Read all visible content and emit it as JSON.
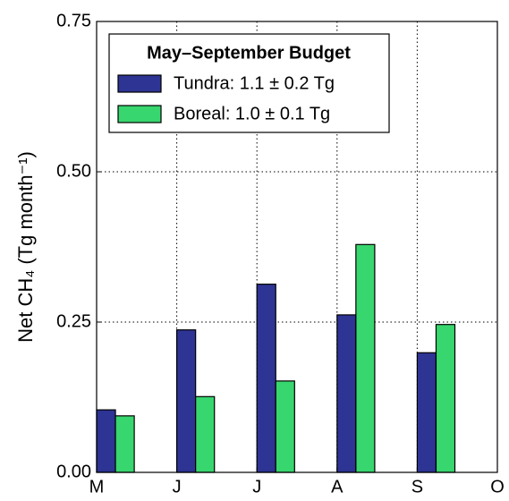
{
  "chart_data": {
    "type": "bar",
    "ylabel": "Net CH₄ (Tg month⁻¹)",
    "legend_title": "May–September Budget",
    "legend_loc": "upper left",
    "categories": [
      "M",
      "J",
      "J",
      "A",
      "S",
      "O"
    ],
    "series": [
      {
        "name": "Tundra: 1.1 ± 0.2 Tg",
        "color": "#2d3494",
        "values": [
          0.104,
          0.237,
          0.313,
          0.262,
          0.199,
          null
        ]
      },
      {
        "name": "Boreal: 1.0 ± 0.1 Tg",
        "color": "#38d66e",
        "values": [
          0.094,
          0.126,
          0.152,
          0.379,
          0.246,
          null
        ]
      }
    ],
    "ylim": [
      0,
      0.75
    ],
    "yticks": [
      {
        "value": 0,
        "label": "0.00"
      },
      {
        "value": 0.25,
        "label": "0.25"
      },
      {
        "value": 0.5,
        "label": "0.50"
      },
      {
        "value": 0.75,
        "label": "0.75"
      }
    ],
    "grid": true
  }
}
